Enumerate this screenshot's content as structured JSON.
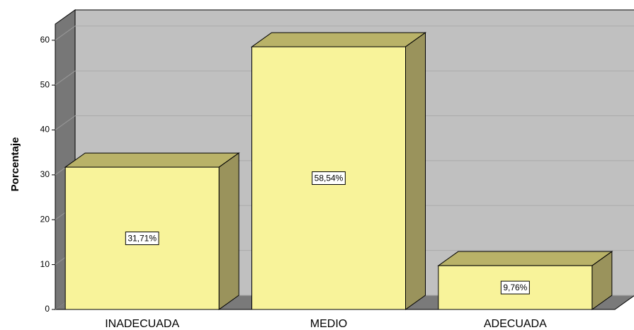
{
  "chart_data": {
    "type": "bar3d",
    "ylabel": "Porcentaje",
    "categories": [
      "INADECUADA",
      "MEDIO",
      "ADECUADA"
    ],
    "values": [
      31.71,
      58.54,
      9.76
    ],
    "value_labels": [
      "31,71%",
      "58,54%",
      "9,76%"
    ],
    "color": "#f8f39a",
    "ylim": [
      0,
      63.6
    ],
    "yticks": [
      0,
      10,
      20,
      30,
      40,
      50,
      60
    ],
    "grid": true
  }
}
